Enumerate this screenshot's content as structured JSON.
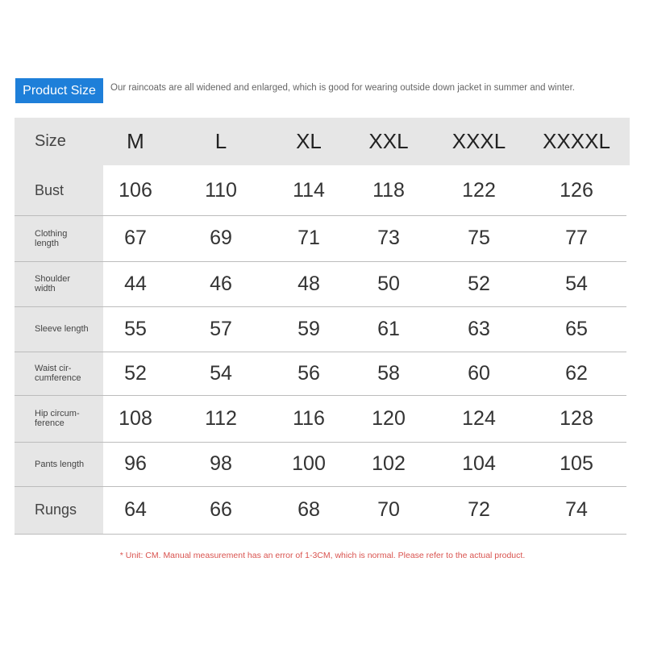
{
  "header": {
    "badge": "Product Size",
    "intro": "Our raincoats are all widened and enlarged, which is good for wearing outside down jacket in summer and winter."
  },
  "table": {
    "corner": "Size",
    "sizes": [
      "M",
      "L",
      "XL",
      "XXL",
      "XXXL",
      "XXXXL"
    ],
    "rows": [
      {
        "label": "Bust",
        "values": [
          "106",
          "110",
          "114",
          "118",
          "122",
          "126"
        ]
      },
      {
        "label": "Clothing length",
        "values": [
          "67",
          "69",
          "71",
          "73",
          "75",
          "77"
        ]
      },
      {
        "label": "Shoulder width",
        "values": [
          "44",
          "46",
          "48",
          "50",
          "52",
          "54"
        ]
      },
      {
        "label": "Sleeve length",
        "values": [
          "55",
          "57",
          "59",
          "61",
          "63",
          "65"
        ]
      },
      {
        "label": "Waist cir-cumference",
        "values": [
          "52",
          "54",
          "56",
          "58",
          "60",
          "62"
        ]
      },
      {
        "label": "Hip circum-ference",
        "values": [
          "108",
          "112",
          "116",
          "120",
          "124",
          "128"
        ]
      },
      {
        "label": "Pants length",
        "values": [
          "96",
          "98",
          "100",
          "102",
          "104",
          "105"
        ]
      },
      {
        "label": "Rungs",
        "values": [
          "64",
          "66",
          "68",
          "70",
          "72",
          "74"
        ]
      }
    ]
  },
  "footer": "* Unit: CM. Manual measurement has an error of 1-3CM, which is normal. Please refer to the actual product.",
  "colors": {
    "badge": "#1e7fd9",
    "footer": "#d9534f",
    "header_bg": "#e6e6e6"
  }
}
